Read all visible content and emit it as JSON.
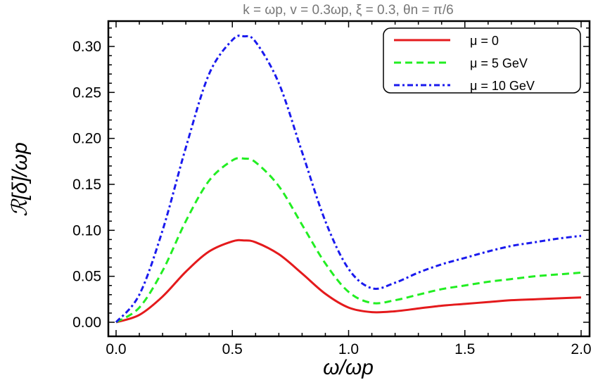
{
  "chart_data": {
    "type": "line",
    "title": "k = ωp, v = 0.3ωp, ξ = 0.3, θn = π/6",
    "xlabel": "ω/ωp",
    "ylabel": "ℛ[δ]/ωp",
    "xlim": [
      0,
      2.0
    ],
    "ylim": [
      0,
      0.32
    ],
    "xticks": [
      "0.0",
      "0.5",
      "1.0",
      "1.5",
      "2.0"
    ],
    "yticks": [
      "0.00",
      "0.05",
      "0.10",
      "0.15",
      "0.20",
      "0.25",
      "0.30"
    ],
    "grid": false,
    "legend_placement": "top-right",
    "x": [
      0,
      0.1,
      0.2,
      0.3,
      0.4,
      0.5,
      0.55,
      0.6,
      0.7,
      0.8,
      0.9,
      1.0,
      1.1,
      1.2,
      1.3,
      1.4,
      1.5,
      1.6,
      1.7,
      1.8,
      1.9,
      2.0
    ],
    "series": [
      {
        "name": "μ = 0",
        "color": "#e41a1c",
        "style": "solid",
        "values": [
          0,
          0.008,
          0.028,
          0.055,
          0.077,
          0.088,
          0.089,
          0.087,
          0.074,
          0.053,
          0.031,
          0.016,
          0.011,
          0.012,
          0.015,
          0.018,
          0.02,
          0.022,
          0.024,
          0.025,
          0.026,
          0.027
        ]
      },
      {
        "name": "μ = 5 GeV",
        "color": "#22ee22",
        "style": "dashed",
        "values": [
          0,
          0.016,
          0.056,
          0.11,
          0.154,
          0.176,
          0.178,
          0.174,
          0.148,
          0.106,
          0.064,
          0.033,
          0.021,
          0.024,
          0.03,
          0.036,
          0.04,
          0.044,
          0.047,
          0.05,
          0.052,
          0.054
        ]
      },
      {
        "name": "μ = 10 GeV",
        "color": "#1a1aee",
        "style": "dashdot",
        "values": [
          0,
          0.03,
          0.1,
          0.19,
          0.27,
          0.307,
          0.311,
          0.305,
          0.26,
          0.185,
          0.11,
          0.058,
          0.037,
          0.043,
          0.054,
          0.063,
          0.07,
          0.077,
          0.083,
          0.087,
          0.091,
          0.094
        ]
      }
    ]
  }
}
